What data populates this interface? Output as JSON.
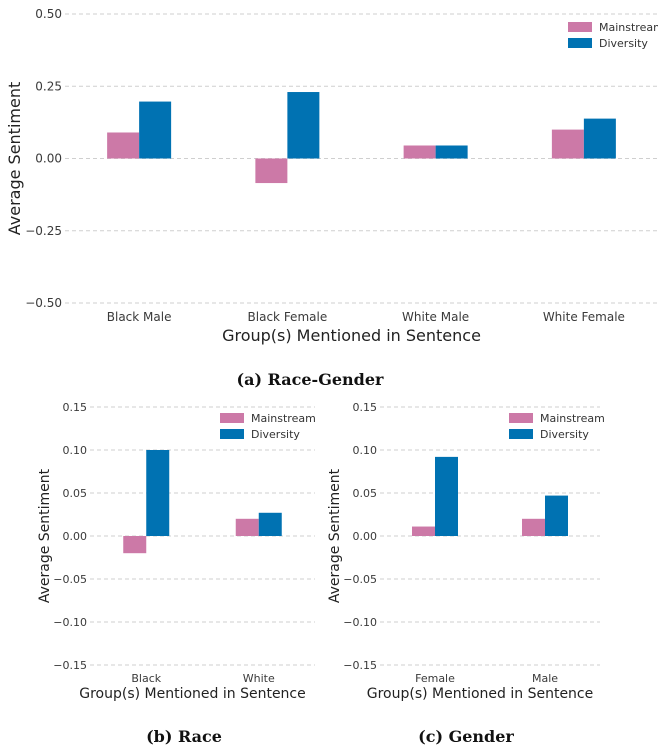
{
  "colors": {
    "mainstream": "#cc79a7",
    "diversity": "#0072b2"
  },
  "legend": [
    "Mainstream",
    "Diversity"
  ],
  "captions": {
    "a": "(a) Race-Gender",
    "b": "(b) Race",
    "c": "(c) Gender"
  },
  "chart_data": [
    {
      "type": "bar",
      "categories": [
        "Black Male",
        "Black Female",
        "White Male",
        "White Female"
      ],
      "series": [
        {
          "name": "Mainstream",
          "values": [
            0.09,
            -0.085,
            0.045,
            0.1
          ]
        },
        {
          "name": "Diversity",
          "values": [
            0.197,
            0.23,
            0.045,
            0.138
          ]
        }
      ],
      "xlabel": "Group(s) Mentioned in Sentence",
      "ylabel": "Average Sentiment",
      "ylim": [
        -0.5,
        0.5
      ],
      "yticks": [
        "0.50",
        "0.25",
        "0.00",
        "−0.25",
        "−0.50"
      ],
      "grid": true,
      "legend_position": "top-right"
    },
    {
      "type": "bar",
      "categories": [
        "Black",
        "White"
      ],
      "series": [
        {
          "name": "Mainstream",
          "values": [
            -0.02,
            0.02
          ]
        },
        {
          "name": "Diversity",
          "values": [
            0.1,
            0.027
          ]
        }
      ],
      "xlabel": "Group(s) Mentioned in Sentence",
      "ylabel": "Average Sentiment",
      "ylim": [
        -0.15,
        0.15
      ],
      "yticks": [
        "0.15",
        "0.10",
        "0.05",
        "0.00",
        "−0.05",
        "−0.10",
        "−0.15"
      ],
      "grid": true,
      "legend_position": "top-right"
    },
    {
      "type": "bar",
      "categories": [
        "Female",
        "Male"
      ],
      "series": [
        {
          "name": "Mainstream",
          "values": [
            0.011,
            0.02
          ]
        },
        {
          "name": "Diversity",
          "values": [
            0.092,
            0.047
          ]
        }
      ],
      "xlabel": "Group(s) Mentioned in Sentence",
      "ylabel": "Average Sentiment",
      "ylim": [
        -0.15,
        0.15
      ],
      "yticks": [
        "0.15",
        "0.10",
        "0.05",
        "0.00",
        "−0.05",
        "−0.10",
        "−0.15"
      ],
      "grid": true,
      "legend_position": "top-right"
    }
  ]
}
